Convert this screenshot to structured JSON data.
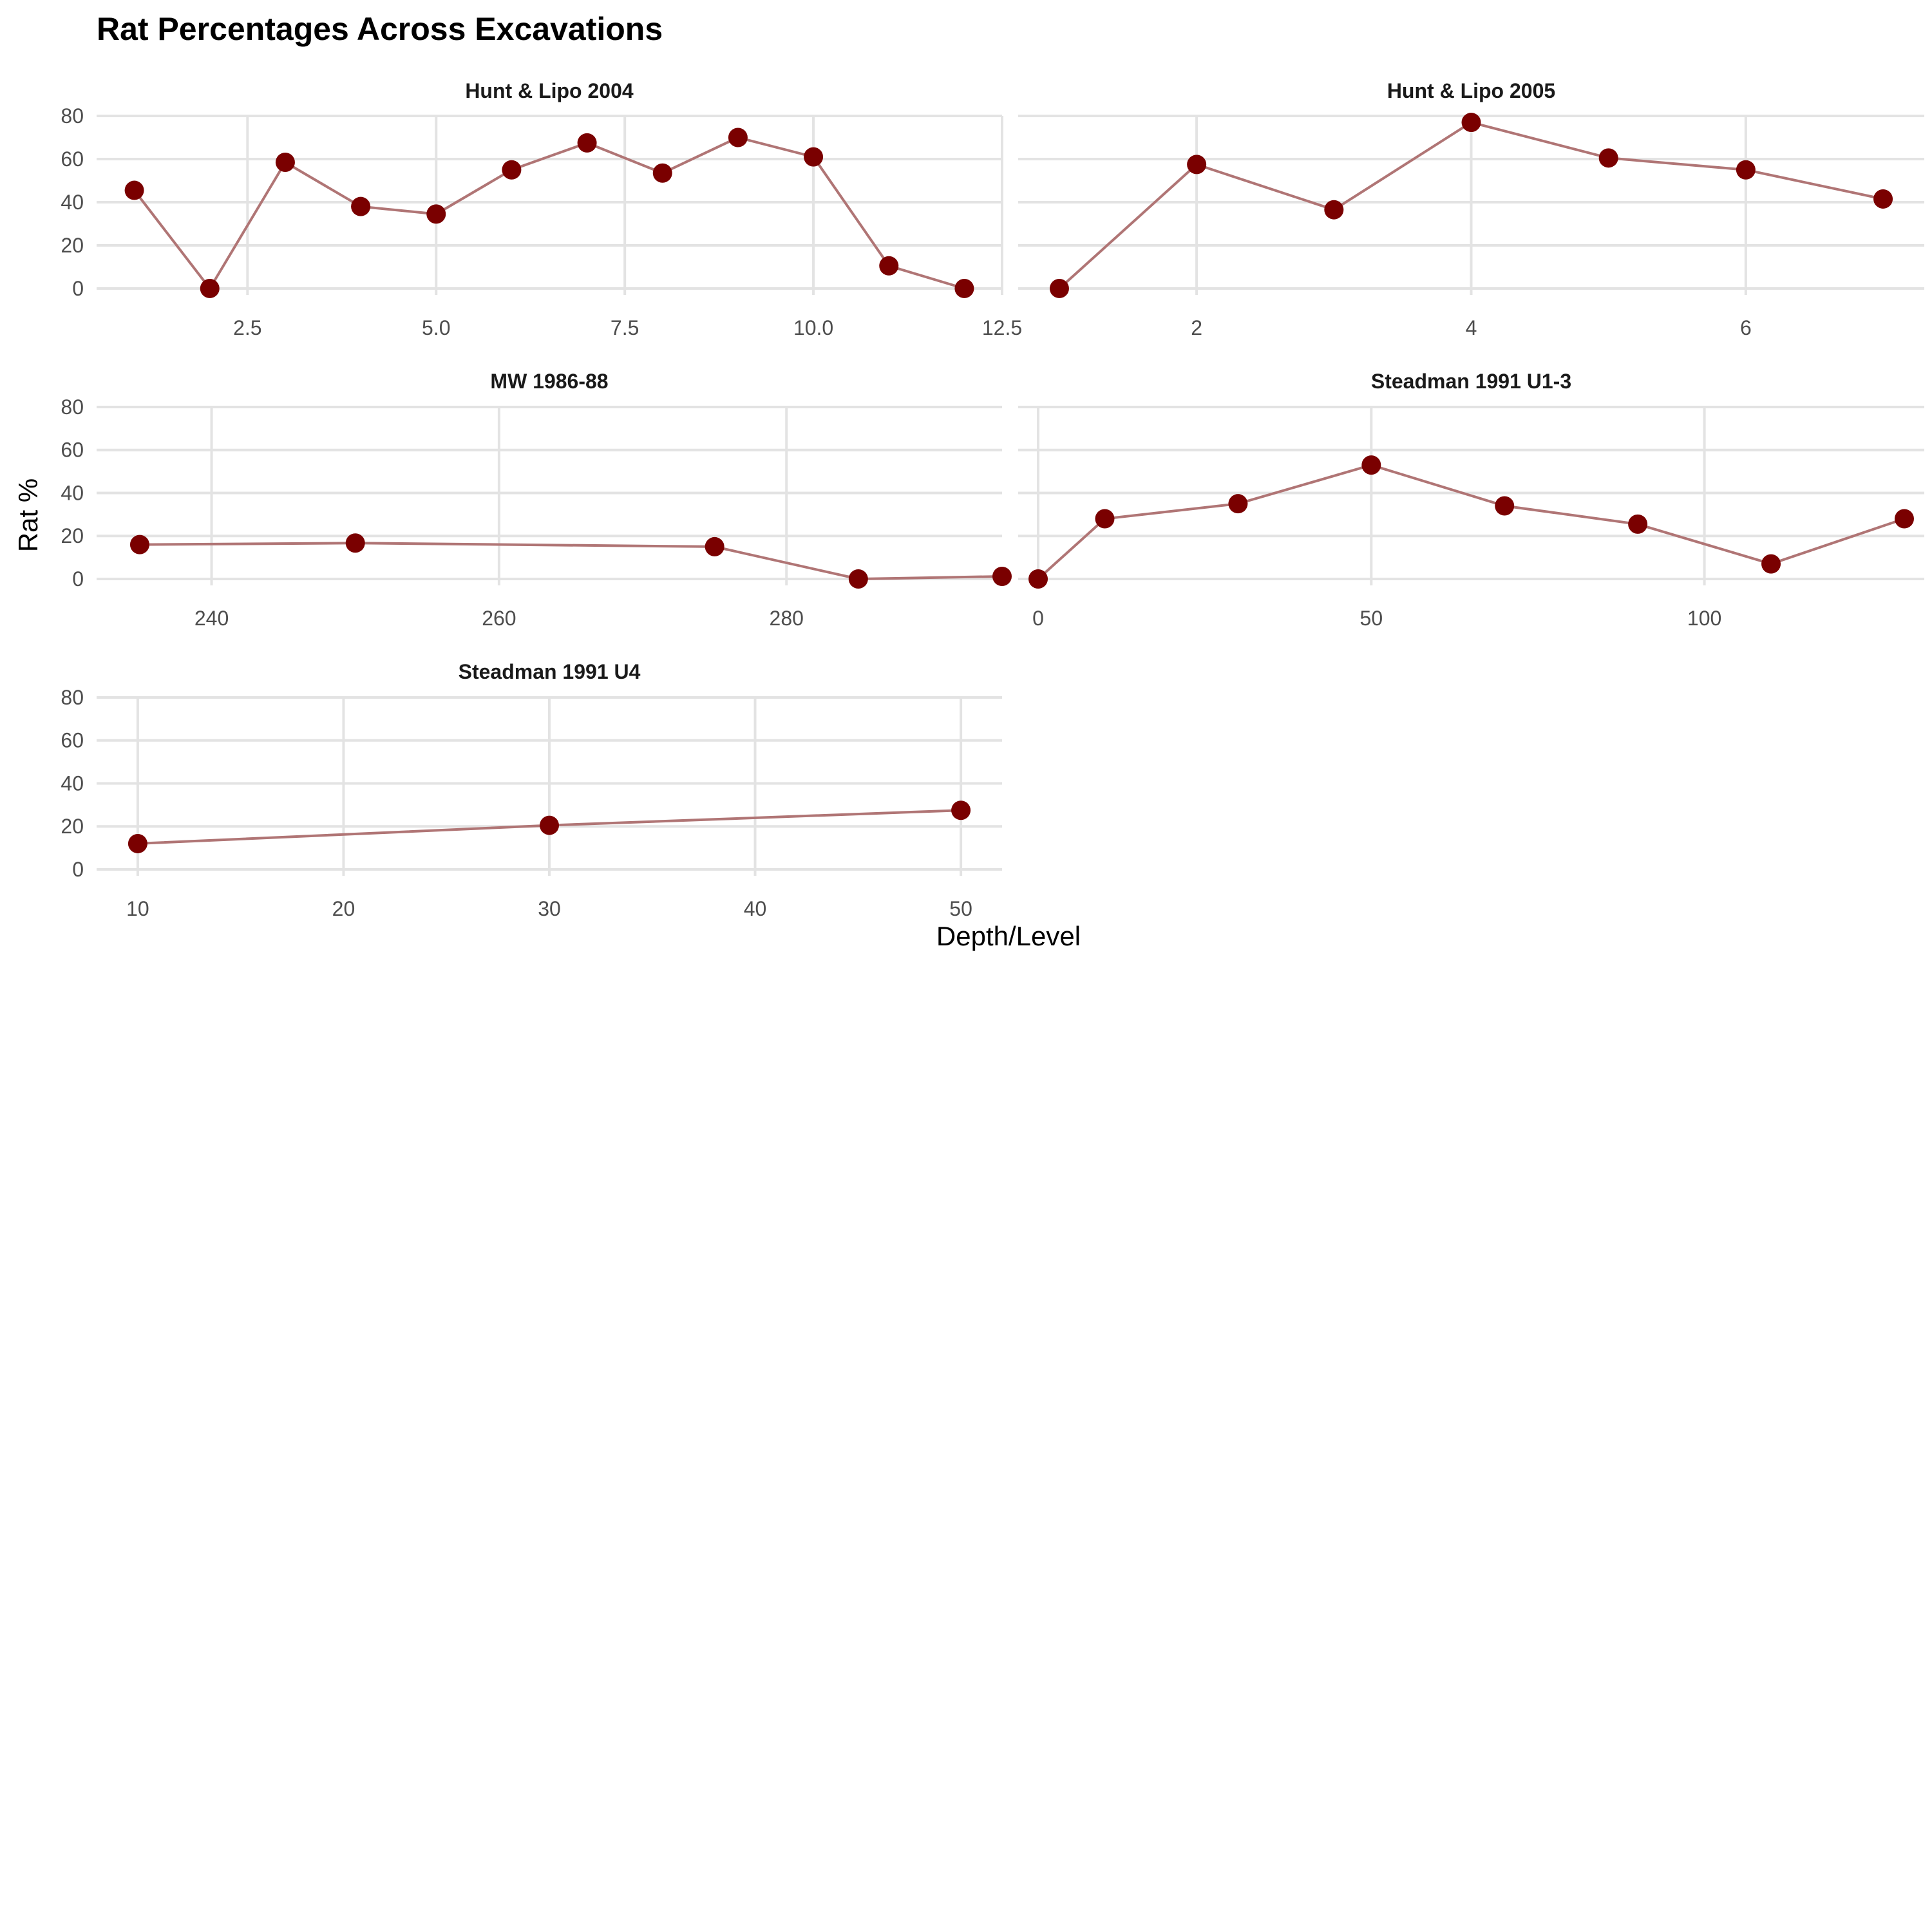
{
  "chart_data": {
    "type": "line",
    "title": "Rat Percentages Across Excavations",
    "xlabel": "Depth/Level",
    "ylabel": "Rat %",
    "ylim": [
      -3,
      80
    ],
    "yticks": [
      0,
      20,
      40,
      60,
      80
    ],
    "grid": true,
    "legend": "none",
    "colors": {
      "point": "#7a0000",
      "line": "#b07575",
      "grid": "#e3e3e3"
    },
    "panels": [
      {
        "name": "Hunt & Lipo 2004",
        "xlim": [
          0.5,
          12.5
        ],
        "xticks": [
          2.5,
          5.0,
          7.5,
          10.0,
          12.5
        ],
        "xtick_labels": [
          "2.5",
          "5.0",
          "7.5",
          "10.0",
          "12.5"
        ],
        "x": [
          1,
          2,
          3,
          4,
          5,
          6,
          7,
          8,
          9,
          10,
          11,
          12
        ],
        "y": [
          45.5,
          0,
          58.5,
          38,
          34.5,
          55,
          67.5,
          53.5,
          70,
          61,
          10.5,
          0
        ]
      },
      {
        "name": "Hunt & Lipo 2005",
        "xlim": [
          0.7,
          7.3
        ],
        "xticks": [
          2,
          4,
          6
        ],
        "xtick_labels": [
          "2",
          "4",
          "6"
        ],
        "x": [
          1,
          2,
          3,
          4,
          5,
          6,
          7
        ],
        "y": [
          0,
          57.5,
          36.5,
          77,
          60.5,
          55,
          41.5
        ]
      },
      {
        "name": "MW 1986-88",
        "xlim": [
          232,
          295
        ],
        "xticks": [
          240,
          260,
          280
        ],
        "xtick_labels": [
          "240",
          "260",
          "280"
        ],
        "x": [
          235,
          250,
          275,
          285,
          295
        ],
        "y": [
          16,
          16.7,
          15,
          0,
          1.2
        ]
      },
      {
        "name": "Steadman 1991 U1-3",
        "xlim": [
          -3,
          133
        ],
        "xticks": [
          0,
          50,
          100
        ],
        "xtick_labels": [
          "0",
          "50",
          "100"
        ],
        "x": [
          0,
          10,
          30,
          50,
          70,
          90,
          110,
          130
        ],
        "y": [
          0,
          28,
          35,
          53,
          34,
          25.5,
          7,
          28
        ]
      },
      {
        "name": "Steadman 1991 U4",
        "xlim": [
          8,
          52
        ],
        "xticks": [
          10,
          20,
          30,
          40,
          50
        ],
        "xtick_labels": [
          "10",
          "20",
          "30",
          "40",
          "50"
        ],
        "x": [
          10,
          30,
          50
        ],
        "y": [
          12,
          20.5,
          27.5
        ]
      }
    ]
  }
}
